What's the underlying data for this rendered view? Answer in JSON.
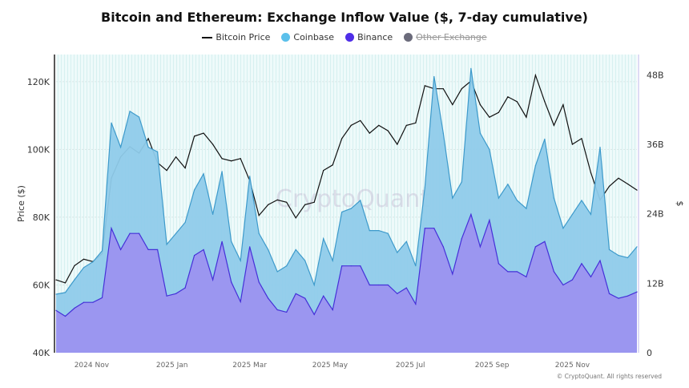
{
  "chart_data": {
    "type": "area",
    "title": "Bitcoin and Ethereum: Exchange Inflow Value ($, 7-day cumulative)",
    "ylabel": "Price ($)",
    "y2label": "$",
    "ylim": [
      40000,
      128000
    ],
    "y2lim": [
      0,
      51.5
    ],
    "yticks": [
      "40K",
      "60K",
      "80K",
      "100K",
      "120K"
    ],
    "yticks_values": [
      40000,
      60000,
      80000,
      100000,
      120000
    ],
    "y2ticks": [
      "0",
      "12B",
      "24B",
      "36B",
      "48B"
    ],
    "y2ticks_values": [
      0,
      12,
      24,
      36,
      48
    ],
    "xticks": [
      "2024 Nov",
      "2025 Jan",
      "2025 Mar",
      "2025 May",
      "2025 Jul",
      "2025 Sep",
      "2025 Nov"
    ],
    "xticks_values": [
      "2024-11-01",
      "2025-01-01",
      "2025-03-01",
      "2025-05-01",
      "2025-07-01",
      "2025-09-01",
      "2025-11-01"
    ],
    "xlim": [
      "2024-10-05",
      "2025-12-20"
    ],
    "grid": true,
    "legend_placement": "top",
    "watermark": "CryptoQuant",
    "legend": [
      {
        "label": "Bitcoin Price",
        "color": "#111111",
        "marker": "line",
        "hidden": false
      },
      {
        "label": "Coinbase",
        "color": "#5bc0eb",
        "marker": "dot",
        "hidden": false
      },
      {
        "label": "Binance",
        "color": "#4f2ee8",
        "marker": "dot",
        "hidden": false
      },
      {
        "label": "Other Exchange",
        "color": "#6b6b7b",
        "marker": "dot",
        "hidden": true
      }
    ],
    "x": [
      "2024-10-05",
      "2024-10-12",
      "2024-10-19",
      "2024-10-26",
      "2024-11-02",
      "2024-11-09",
      "2024-11-16",
      "2024-11-23",
      "2024-11-30",
      "2024-12-07",
      "2024-12-14",
      "2024-12-21",
      "2024-12-28",
      "2025-01-04",
      "2025-01-11",
      "2025-01-18",
      "2025-01-25",
      "2025-02-01",
      "2025-02-08",
      "2025-02-15",
      "2025-02-22",
      "2025-03-01",
      "2025-03-08",
      "2025-03-15",
      "2025-03-22",
      "2025-03-29",
      "2025-04-05",
      "2025-04-12",
      "2025-04-19",
      "2025-04-26",
      "2025-05-03",
      "2025-05-10",
      "2025-05-17",
      "2025-05-24",
      "2025-05-31",
      "2025-06-07",
      "2025-06-14",
      "2025-06-21",
      "2025-06-28",
      "2025-07-05",
      "2025-07-12",
      "2025-07-19",
      "2025-07-26",
      "2025-08-02",
      "2025-08-09",
      "2025-08-16",
      "2025-08-23",
      "2025-08-30",
      "2025-09-06",
      "2025-09-13",
      "2025-09-20",
      "2025-09-27",
      "2025-10-04",
      "2025-10-11",
      "2025-10-18",
      "2025-10-25",
      "2025-11-01",
      "2025-11-08",
      "2025-11-15",
      "2025-11-22",
      "2025-11-29",
      "2025-12-06",
      "2025-12-13",
      "2025-12-20"
    ],
    "series": [
      {
        "name": "Bitcoin Price",
        "axis": "left",
        "unit": "$",
        "color": "#111111",
        "values": [
          61500,
          60600,
          65700,
          67600,
          66900,
          69200,
          91500,
          97800,
          100800,
          98900,
          103200,
          96100,
          93800,
          97800,
          94500,
          103900,
          104800,
          101500,
          97300,
          96600,
          97300,
          90800,
          80500,
          83700,
          85100,
          84400,
          79800,
          83700,
          84400,
          93800,
          95400,
          103200,
          107100,
          108500,
          104800,
          107100,
          105500,
          101500,
          107100,
          107800,
          118800,
          117900,
          117900,
          113200,
          117900,
          120200,
          113200,
          109500,
          110900,
          115500,
          114100,
          109500,
          121900,
          114100,
          107100,
          113200,
          101500,
          103200,
          93100,
          85100,
          89100,
          91500,
          89800,
          88000
        ]
      },
      {
        "name": "Coinbase",
        "axis": "right",
        "unit": "B",
        "color": "#5bc0eb",
        "values": [
          10.1,
          10.4,
          12.6,
          14.7,
          15.7,
          17.6,
          39.7,
          35.5,
          41.7,
          40.7,
          35.5,
          34.7,
          18.7,
          20.6,
          22.5,
          28.1,
          30.9,
          23.9,
          31.3,
          19.2,
          15.9,
          30.5,
          20.6,
          17.8,
          14.0,
          15.0,
          17.8,
          15.9,
          11.7,
          19.7,
          15.9,
          24.3,
          24.9,
          26.3,
          21.1,
          21.1,
          20.6,
          17.3,
          19.2,
          15.0,
          28.5,
          47.7,
          37.9,
          26.7,
          29.5,
          49.1,
          37.9,
          35.1,
          26.7,
          29.1,
          26.3,
          24.9,
          32.3,
          36.9,
          26.7,
          21.5,
          23.9,
          26.3,
          23.9,
          35.5,
          17.8,
          16.8,
          16.4,
          18.3
        ]
      },
      {
        "name": "Binance",
        "axis": "right",
        "unit": "B",
        "color": "#4f2ee8",
        "values": [
          7.3,
          6.3,
          7.7,
          8.7,
          8.7,
          9.5,
          21.5,
          17.8,
          20.6,
          20.6,
          17.8,
          17.8,
          9.8,
          10.2,
          11.2,
          16.8,
          17.8,
          12.6,
          19.2,
          12.2,
          8.8,
          18.3,
          12.2,
          9.4,
          7.4,
          7.0,
          10.2,
          9.4,
          6.6,
          9.8,
          7.4,
          15.0,
          15.0,
          15.0,
          11.7,
          11.7,
          11.7,
          10.2,
          11.2,
          8.4,
          21.5,
          21.5,
          18.3,
          13.6,
          19.7,
          23.9,
          18.3,
          22.9,
          15.4,
          14.0,
          14.0,
          13.1,
          18.3,
          19.2,
          14.0,
          11.7,
          12.6,
          15.4,
          13.1,
          15.9,
          10.2,
          9.4,
          9.8,
          10.5
        ]
      }
    ]
  },
  "footer": "© CryptoQuant. All rights reserved"
}
